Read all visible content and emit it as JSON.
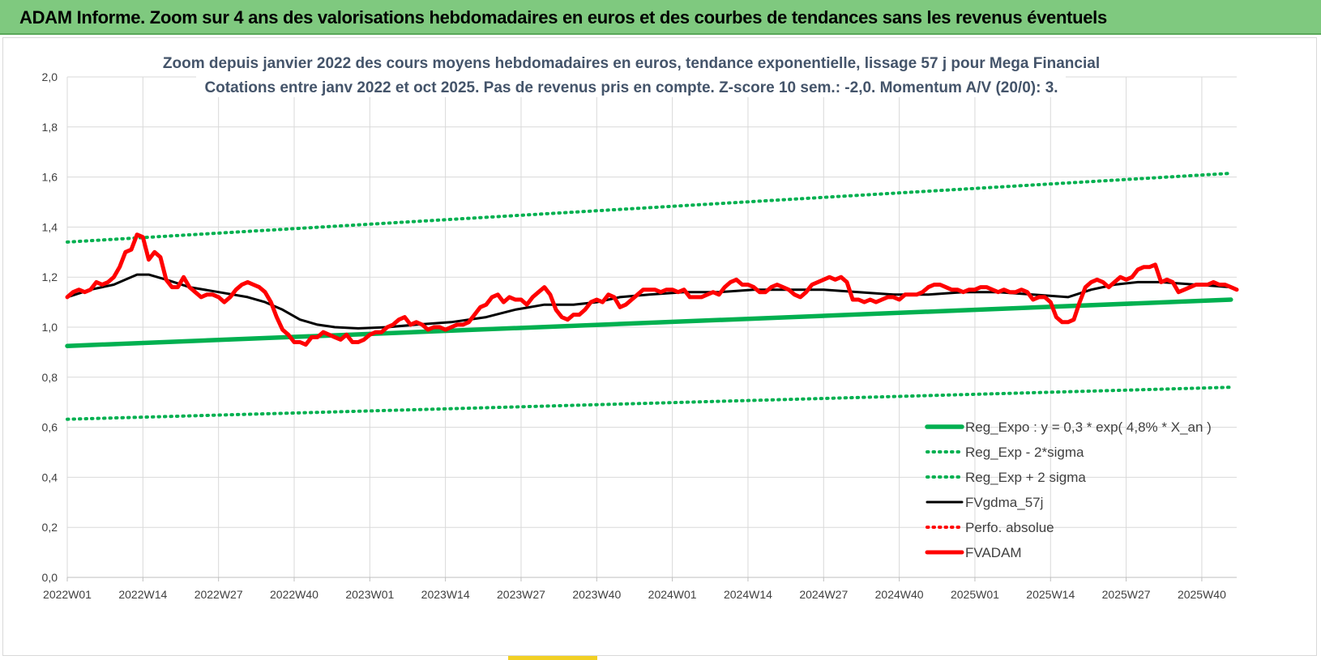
{
  "banner": {
    "title": "ADAM Informe. Zoom sur 4 ans des valorisations hebdomadaires en euros et des courbes de tendances sans les revenus éventuels",
    "background": "#7fc97f"
  },
  "chart_data": {
    "type": "line",
    "title_line1": "Zoom depuis janvier 2022 des cours moyens hebdomadaires en euros, tendance exponentielle, lissage 57 j pour Mega Financial",
    "title_line2": "Cotations entre janv 2022 et oct 2025. Pas de revenus pris en compte. Z-score 10 sem.: -2,0. Momentum A/V (20/0): 3.",
    "xlabel": "",
    "ylabel": "",
    "ylim": [
      0,
      2.0
    ],
    "y_ticks": [
      "0,0",
      "0,2",
      "0,4",
      "0,6",
      "0,8",
      "1,0",
      "1,2",
      "1,4",
      "1,6",
      "1,8",
      "2,0"
    ],
    "x_ticks": [
      "2022W01",
      "2022W14",
      "2022W27",
      "2022W40",
      "2023W01",
      "2023W14",
      "2023W27",
      "2023W40",
      "2024W01",
      "2024W14",
      "2024W27",
      "2024W40",
      "2025W01",
      "2025W14",
      "2025W27",
      "2025W40"
    ],
    "x_tick_weeks": [
      0,
      13,
      26,
      39,
      52,
      65,
      78,
      91,
      104,
      117,
      130,
      143,
      156,
      169,
      182,
      195
    ],
    "grid": true,
    "legend_position": "bottom-right",
    "series": [
      {
        "name": "Reg_Expo : y = 0,3 * exp( 4,8% *  X_an )",
        "color": "#00b050",
        "style": "solid-thick",
        "points": [
          [
            0,
            0.925
          ],
          [
            200,
            1.11
          ]
        ]
      },
      {
        "name": "Reg_Exp - 2*sigma",
        "color": "#00b050",
        "style": "dotted",
        "points": [
          [
            0,
            0.632
          ],
          [
            200,
            0.76
          ]
        ]
      },
      {
        "name": "Reg_Exp + 2 sigma",
        "color": "#00b050",
        "style": "dotted",
        "points": [
          [
            0,
            1.34
          ],
          [
            200,
            1.615
          ]
        ]
      },
      {
        "name": "FVgdma_57j",
        "color": "#000000",
        "style": "solid",
        "points": [
          [
            0,
            1.12
          ],
          [
            4,
            1.15
          ],
          [
            8,
            1.17
          ],
          [
            10,
            1.19
          ],
          [
            12,
            1.21
          ],
          [
            14,
            1.21
          ],
          [
            17,
            1.19
          ],
          [
            21,
            1.16
          ],
          [
            26,
            1.14
          ],
          [
            31,
            1.12
          ],
          [
            34,
            1.1
          ],
          [
            37,
            1.07
          ],
          [
            40,
            1.03
          ],
          [
            43,
            1.01
          ],
          [
            46,
            1.0
          ],
          [
            50,
            0.995
          ],
          [
            55,
            1.0
          ],
          [
            60,
            1.01
          ],
          [
            66,
            1.02
          ],
          [
            72,
            1.04
          ],
          [
            77,
            1.07
          ],
          [
            82,
            1.09
          ],
          [
            87,
            1.09
          ],
          [
            91,
            1.1
          ],
          [
            95,
            1.12
          ],
          [
            100,
            1.13
          ],
          [
            106,
            1.14
          ],
          [
            112,
            1.14
          ],
          [
            118,
            1.15
          ],
          [
            124,
            1.15
          ],
          [
            130,
            1.15
          ],
          [
            136,
            1.14
          ],
          [
            142,
            1.13
          ],
          [
            148,
            1.13
          ],
          [
            154,
            1.14
          ],
          [
            160,
            1.14
          ],
          [
            166,
            1.13
          ],
          [
            172,
            1.12
          ],
          [
            176,
            1.15
          ],
          [
            180,
            1.17
          ],
          [
            184,
            1.18
          ],
          [
            188,
            1.18
          ],
          [
            194,
            1.17
          ],
          [
            200,
            1.16
          ]
        ]
      },
      {
        "name": "Perfo. absolue",
        "color": "#ff0000",
        "style": "dotted",
        "points": []
      },
      {
        "name": "FVADAM",
        "color": "#ff0000",
        "style": "solid-thick",
        "points": [
          [
            0,
            1.12
          ],
          [
            1,
            1.14
          ],
          [
            2,
            1.15
          ],
          [
            3,
            1.14
          ],
          [
            4,
            1.15
          ],
          [
            5,
            1.18
          ],
          [
            6,
            1.17
          ],
          [
            7,
            1.18
          ],
          [
            8,
            1.2
          ],
          [
            9,
            1.24
          ],
          [
            10,
            1.3
          ],
          [
            11,
            1.31
          ],
          [
            12,
            1.37
          ],
          [
            13,
            1.36
          ],
          [
            14,
            1.27
          ],
          [
            15,
            1.3
          ],
          [
            16,
            1.28
          ],
          [
            17,
            1.19
          ],
          [
            18,
            1.16
          ],
          [
            19,
            1.16
          ],
          [
            20,
            1.2
          ],
          [
            21,
            1.16
          ],
          [
            22,
            1.14
          ],
          [
            23,
            1.12
          ],
          [
            24,
            1.13
          ],
          [
            25,
            1.13
          ],
          [
            26,
            1.12
          ],
          [
            27,
            1.1
          ],
          [
            28,
            1.12
          ],
          [
            29,
            1.15
          ],
          [
            30,
            1.17
          ],
          [
            31,
            1.18
          ],
          [
            32,
            1.17
          ],
          [
            33,
            1.16
          ],
          [
            34,
            1.14
          ],
          [
            35,
            1.1
          ],
          [
            36,
            1.04
          ],
          [
            37,
            0.99
          ],
          [
            38,
            0.97
          ],
          [
            39,
            0.94
          ],
          [
            40,
            0.94
          ],
          [
            41,
            0.93
          ],
          [
            42,
            0.96
          ],
          [
            43,
            0.96
          ],
          [
            44,
            0.98
          ],
          [
            45,
            0.97
          ],
          [
            46,
            0.96
          ],
          [
            47,
            0.95
          ],
          [
            48,
            0.97
          ],
          [
            49,
            0.94
          ],
          [
            50,
            0.94
          ],
          [
            51,
            0.95
          ],
          [
            52,
            0.97
          ],
          [
            53,
            0.98
          ],
          [
            54,
            0.98
          ],
          [
            55,
            1.0
          ],
          [
            56,
            1.01
          ],
          [
            57,
            1.03
          ],
          [
            58,
            1.04
          ],
          [
            59,
            1.01
          ],
          [
            60,
            1.02
          ],
          [
            61,
            1.01
          ],
          [
            62,
            0.99
          ],
          [
            63,
            1.0
          ],
          [
            64,
            1.0
          ],
          [
            65,
            0.99
          ],
          [
            66,
            1.0
          ],
          [
            67,
            1.01
          ],
          [
            68,
            1.01
          ],
          [
            69,
            1.02
          ],
          [
            70,
            1.05
          ],
          [
            71,
            1.08
          ],
          [
            72,
            1.09
          ],
          [
            73,
            1.12
          ],
          [
            74,
            1.13
          ],
          [
            75,
            1.1
          ],
          [
            76,
            1.12
          ],
          [
            77,
            1.11
          ],
          [
            78,
            1.11
          ],
          [
            79,
            1.09
          ],
          [
            80,
            1.12
          ],
          [
            81,
            1.14
          ],
          [
            82,
            1.16
          ],
          [
            83,
            1.13
          ],
          [
            84,
            1.07
          ],
          [
            85,
            1.04
          ],
          [
            86,
            1.03
          ],
          [
            87,
            1.05
          ],
          [
            88,
            1.05
          ],
          [
            89,
            1.07
          ],
          [
            90,
            1.1
          ],
          [
            91,
            1.11
          ],
          [
            92,
            1.1
          ],
          [
            93,
            1.13
          ],
          [
            94,
            1.12
          ],
          [
            95,
            1.08
          ],
          [
            96,
            1.09
          ],
          [
            97,
            1.11
          ],
          [
            98,
            1.13
          ],
          [
            99,
            1.15
          ],
          [
            100,
            1.15
          ],
          [
            101,
            1.15
          ],
          [
            102,
            1.14
          ],
          [
            103,
            1.15
          ],
          [
            104,
            1.15
          ],
          [
            105,
            1.14
          ],
          [
            106,
            1.15
          ],
          [
            107,
            1.12
          ],
          [
            108,
            1.12
          ],
          [
            109,
            1.12
          ],
          [
            110,
            1.13
          ],
          [
            111,
            1.14
          ],
          [
            112,
            1.13
          ],
          [
            113,
            1.16
          ],
          [
            114,
            1.18
          ],
          [
            115,
            1.19
          ],
          [
            116,
            1.17
          ],
          [
            117,
            1.17
          ],
          [
            118,
            1.16
          ],
          [
            119,
            1.14
          ],
          [
            120,
            1.14
          ],
          [
            121,
            1.16
          ],
          [
            122,
            1.17
          ],
          [
            123,
            1.16
          ],
          [
            124,
            1.15
          ],
          [
            125,
            1.13
          ],
          [
            126,
            1.12
          ],
          [
            127,
            1.14
          ],
          [
            128,
            1.17
          ],
          [
            129,
            1.18
          ],
          [
            130,
            1.19
          ],
          [
            131,
            1.2
          ],
          [
            132,
            1.19
          ],
          [
            133,
            1.2
          ],
          [
            134,
            1.18
          ],
          [
            135,
            1.11
          ],
          [
            136,
            1.11
          ],
          [
            137,
            1.1
          ],
          [
            138,
            1.11
          ],
          [
            139,
            1.1
          ],
          [
            140,
            1.11
          ],
          [
            141,
            1.12
          ],
          [
            142,
            1.12
          ],
          [
            143,
            1.11
          ],
          [
            144,
            1.13
          ],
          [
            145,
            1.13
          ],
          [
            146,
            1.13
          ],
          [
            147,
            1.14
          ],
          [
            148,
            1.16
          ],
          [
            149,
            1.17
          ],
          [
            150,
            1.17
          ],
          [
            151,
            1.16
          ],
          [
            152,
            1.15
          ],
          [
            153,
            1.15
          ],
          [
            154,
            1.14
          ],
          [
            155,
            1.15
          ],
          [
            156,
            1.15
          ],
          [
            157,
            1.16
          ],
          [
            158,
            1.16
          ],
          [
            159,
            1.15
          ],
          [
            160,
            1.14
          ],
          [
            161,
            1.15
          ],
          [
            162,
            1.14
          ],
          [
            163,
            1.14
          ],
          [
            164,
            1.15
          ],
          [
            165,
            1.14
          ],
          [
            166,
            1.11
          ],
          [
            167,
            1.12
          ],
          [
            168,
            1.12
          ],
          [
            169,
            1.1
          ],
          [
            170,
            1.04
          ],
          [
            171,
            1.02
          ],
          [
            172,
            1.02
          ],
          [
            173,
            1.03
          ],
          [
            174,
            1.1
          ],
          [
            175,
            1.16
          ],
          [
            176,
            1.18
          ],
          [
            177,
            1.19
          ],
          [
            178,
            1.18
          ],
          [
            179,
            1.16
          ],
          [
            180,
            1.18
          ],
          [
            181,
            1.2
          ],
          [
            182,
            1.19
          ],
          [
            183,
            1.2
          ],
          [
            184,
            1.23
          ],
          [
            185,
            1.24
          ],
          [
            186,
            1.24
          ],
          [
            187,
            1.25
          ],
          [
            188,
            1.18
          ],
          [
            189,
            1.19
          ],
          [
            190,
            1.18
          ],
          [
            191,
            1.14
          ],
          [
            192,
            1.15
          ],
          [
            193,
            1.16
          ],
          [
            194,
            1.17
          ],
          [
            195,
            1.17
          ],
          [
            196,
            1.17
          ],
          [
            197,
            1.18
          ],
          [
            198,
            1.17
          ],
          [
            199,
            1.17
          ],
          [
            200,
            1.16
          ],
          [
            201,
            1.15
          ]
        ]
      }
    ]
  }
}
